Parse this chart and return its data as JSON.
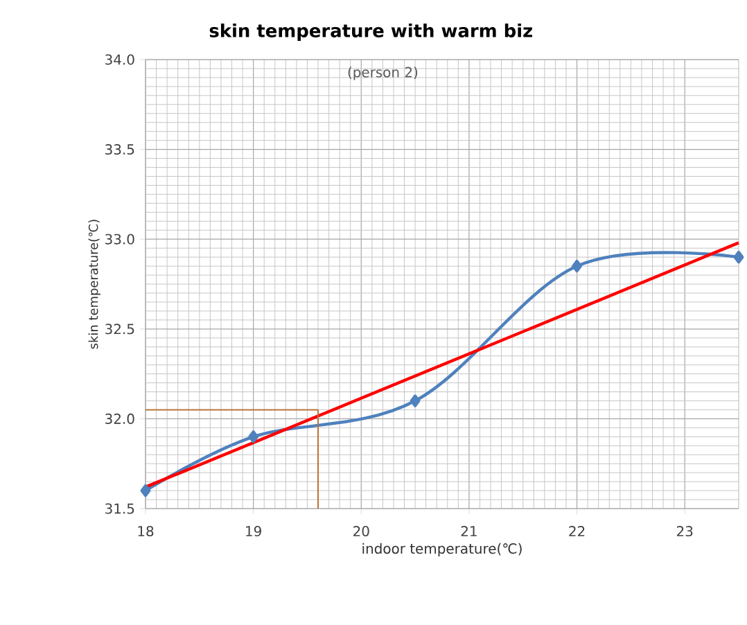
{
  "chart_data": {
    "type": "line",
    "title": "skin temperature with warm biz",
    "xlabel": "indoor temperature(℃)",
    "ylabel": "skin temperature(℃)",
    "annotations": [
      "(person 2)"
    ],
    "x": [
      18,
      19,
      20.5,
      22,
      23.5
    ],
    "series": [
      {
        "color": "#4f81bd",
        "values": [
          31.6,
          31.9,
          32.1,
          32.85,
          32.9
        ],
        "marker": "diamond"
      },
      {
        "color": "#ff0000",
        "x": [
          18,
          23.5
        ],
        "values": [
          31.62,
          32.98
        ],
        "marker": "none"
      },
      {
        "color": "#b8743a",
        "x": [
          18,
          19.6
        ],
        "values": [
          32.05,
          32.05
        ],
        "marker": "none"
      },
      {
        "color": "#b8743a",
        "x": [
          19.6,
          19.6
        ],
        "values": [
          32.05,
          31.5
        ],
        "marker": "none"
      }
    ],
    "xlim": [
      18,
      23.5
    ],
    "ylim": [
      31.5,
      34.0
    ],
    "xticks": [
      18,
      19,
      20,
      21,
      22,
      23
    ],
    "yticks": [
      {
        "value": 31.5,
        "label": "31.5"
      },
      {
        "value": 32,
        "label": "32.0"
      },
      {
        "value": 32.5,
        "label": "32.5"
      },
      {
        "value": 33,
        "label": "33.0"
      },
      {
        "value": 33.5,
        "label": "33.5"
      },
      {
        "value": 34,
        "label": "34.0"
      }
    ],
    "grid": true
  }
}
